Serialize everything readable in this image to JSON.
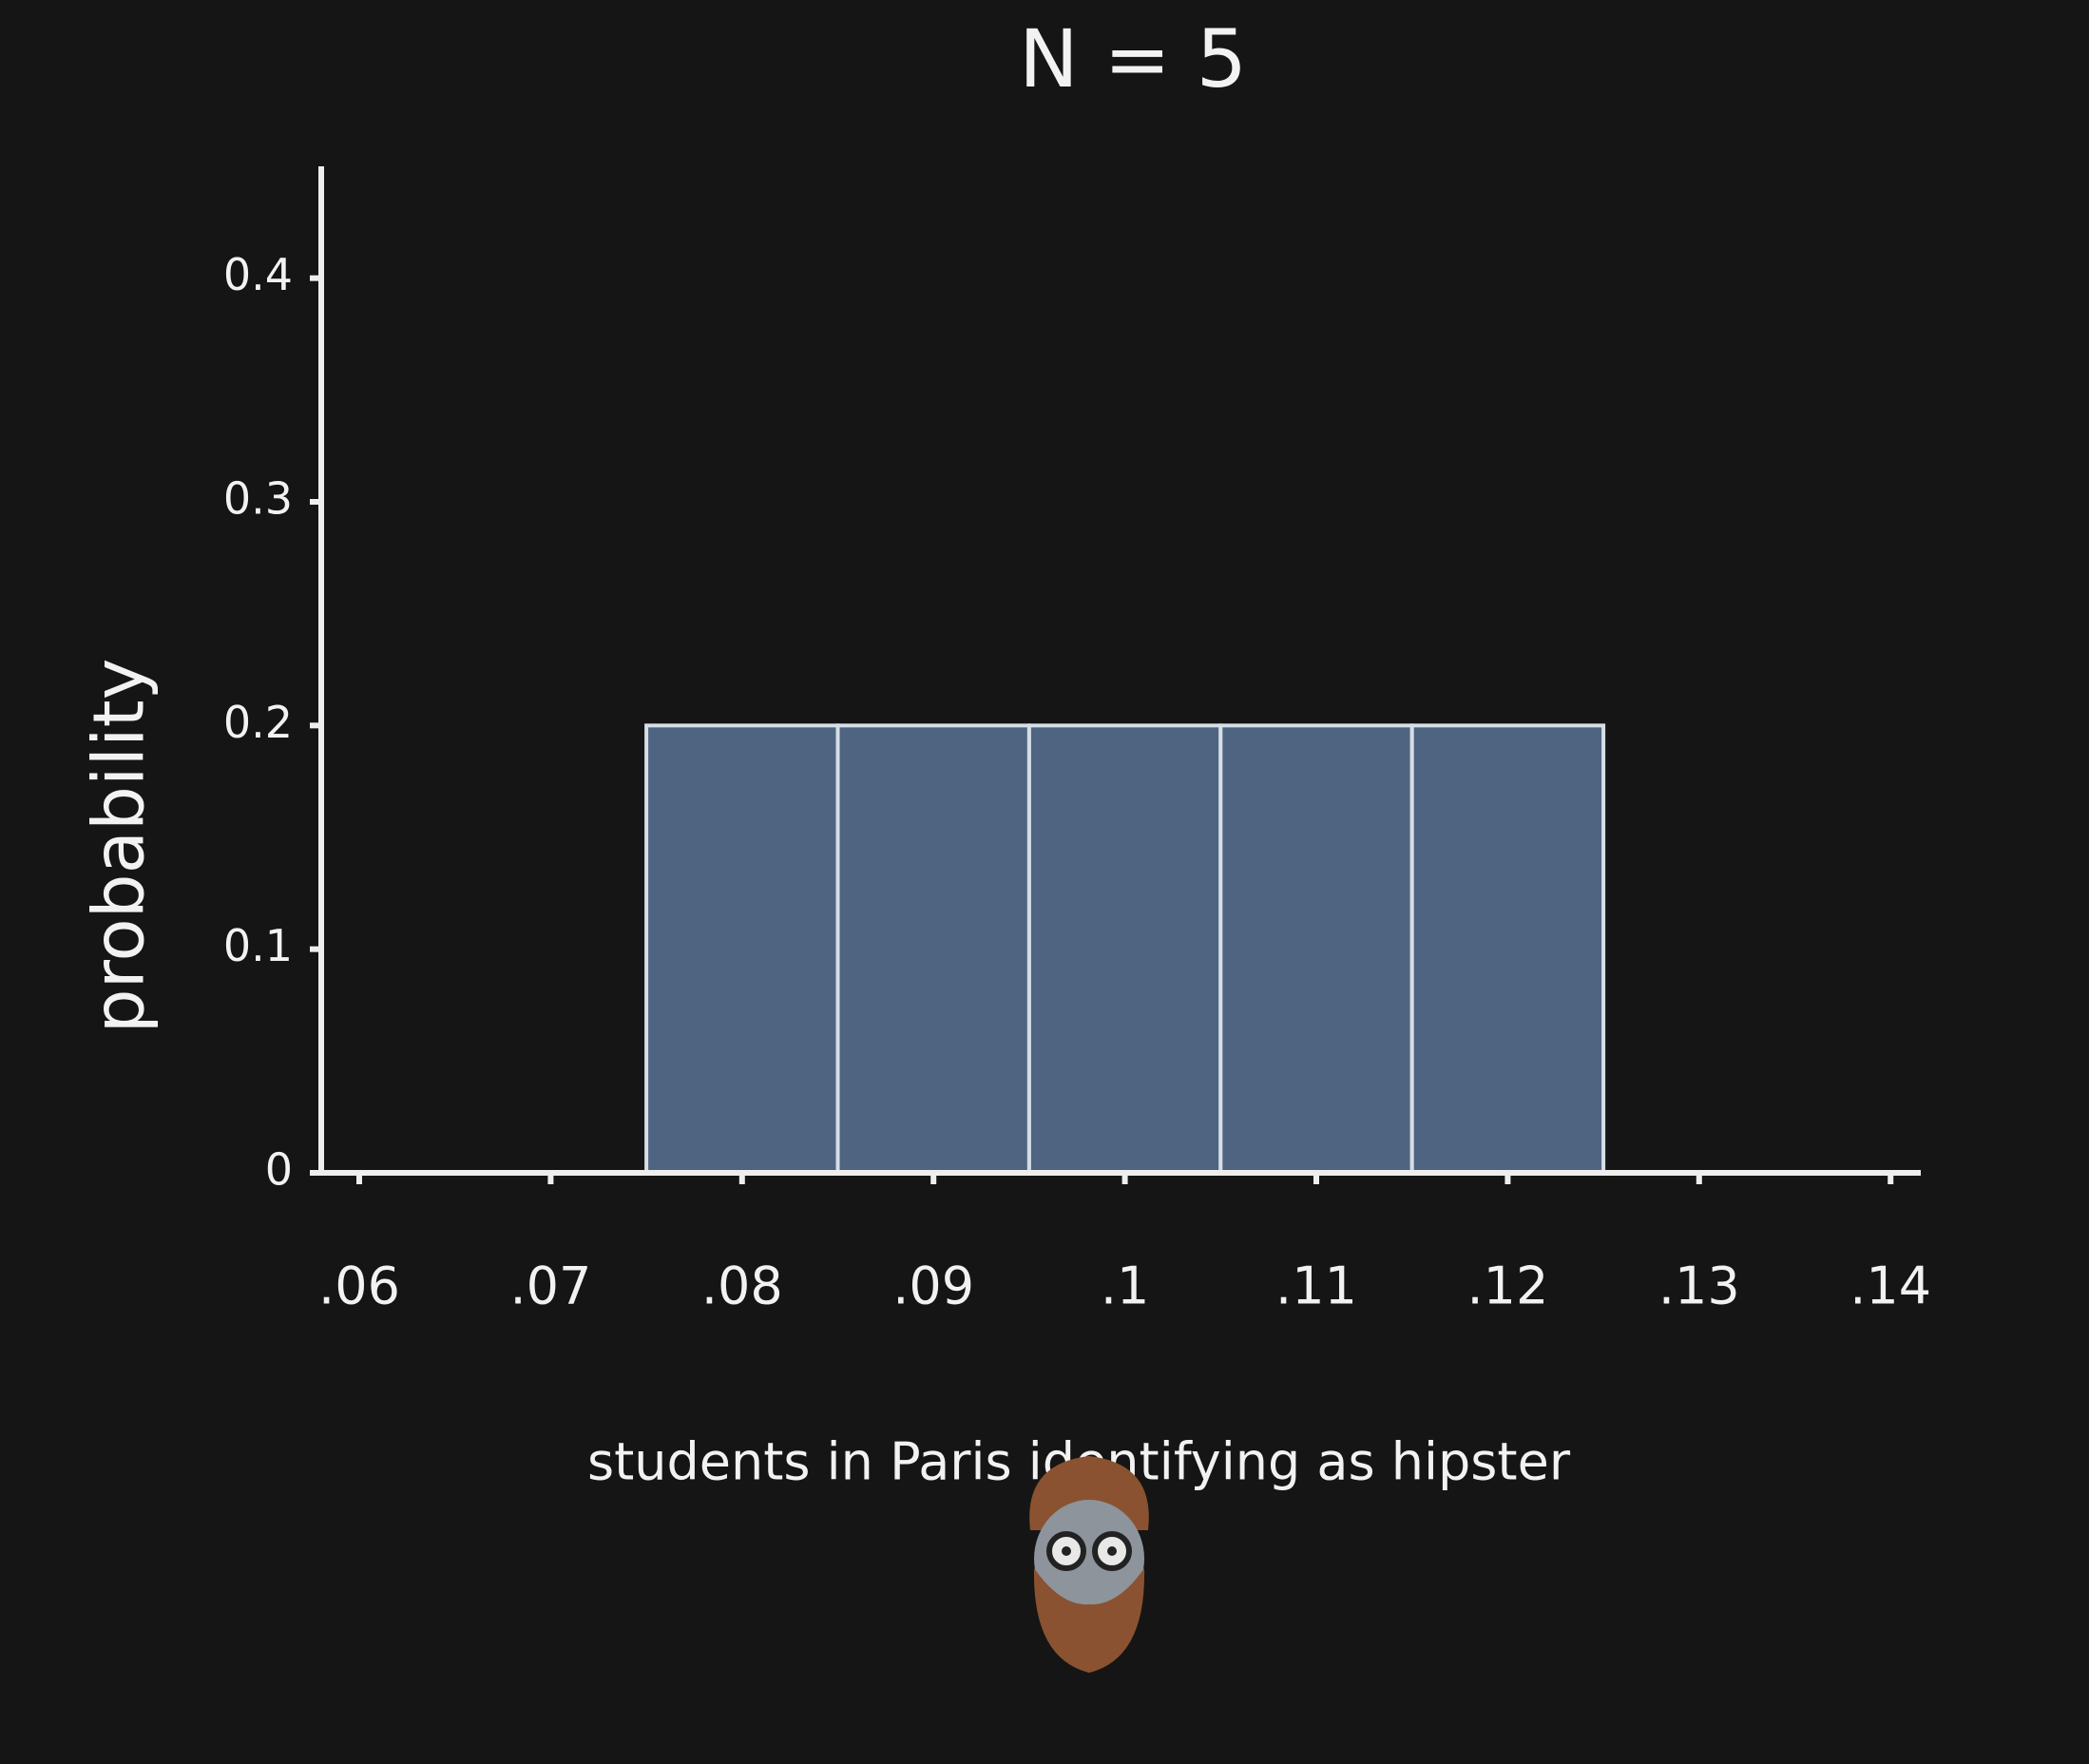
{
  "chart_data": {
    "type": "bar",
    "title": "N = 5",
    "x_label": "students in Paris identifying as hipster",
    "y_label": "probability",
    "categories": [
      ".06",
      ".07",
      ".08",
      ".09",
      ".1",
      ".11",
      ".12",
      ".13",
      ".14"
    ],
    "values": [
      0,
      0,
      0.2,
      0.2,
      0.2,
      0.2,
      0.2,
      0,
      0
    ],
    "color": "#4f6480",
    "edge_color": "#d6dee6",
    "ylim": [
      0,
      0.45
    ],
    "yticks": [
      0,
      0.1,
      0.2,
      0.3,
      0.4
    ],
    "grid": false
  }
}
